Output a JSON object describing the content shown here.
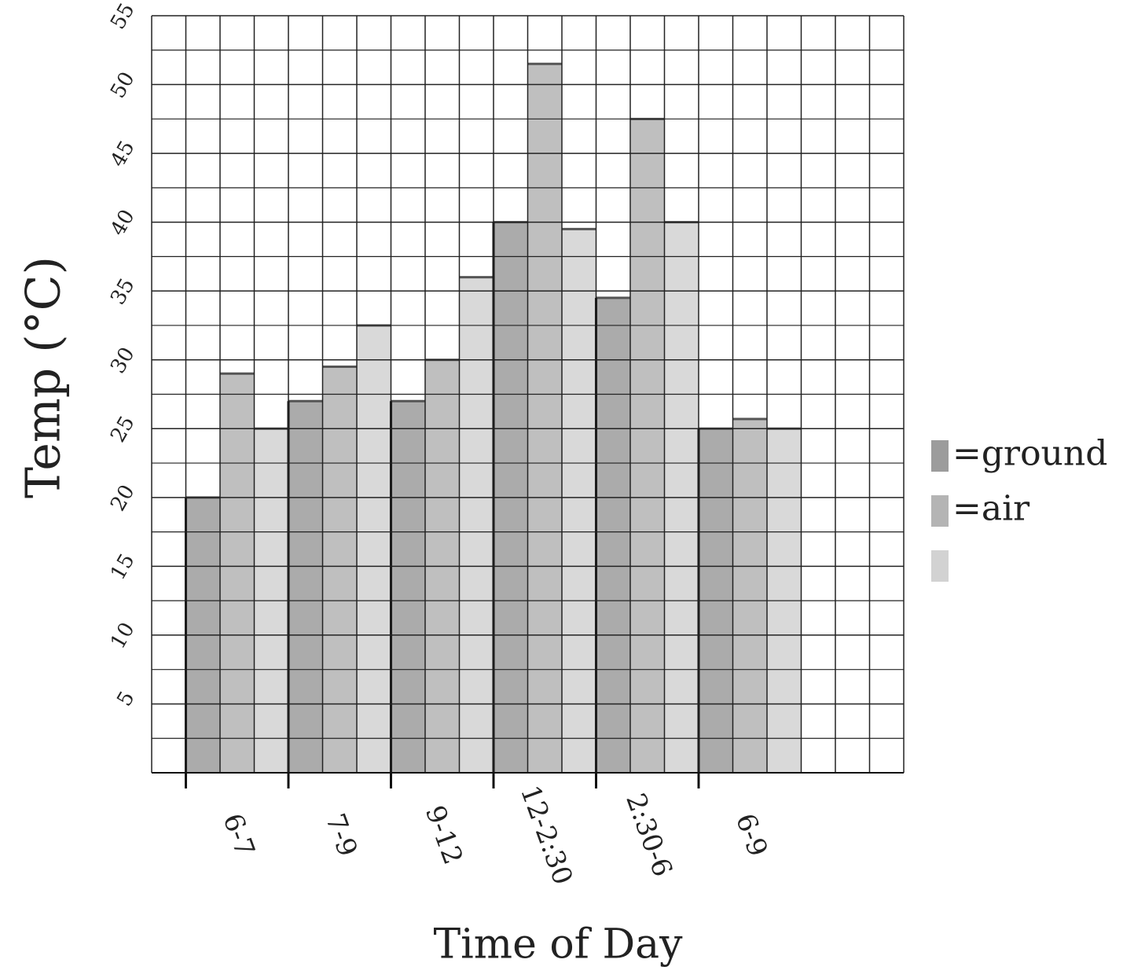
{
  "chart_data": {
    "type": "bar",
    "y_label": "Temp (°C)",
    "x_label": "Time of Day",
    "categories": [
      "6-7",
      "7-9",
      "9-12",
      "12-2:30",
      "2:30-6",
      "6-9"
    ],
    "series": [
      {
        "name": "=ground",
        "color": "#9c9c9c",
        "values": [
          20,
          27,
          27,
          40,
          34.5,
          25
        ]
      },
      {
        "name": "=air",
        "color": "#b4b4b4",
        "values": [
          29,
          29.5,
          30,
          51.5,
          47.5,
          25.7
        ]
      },
      {
        "name": null,
        "color": "#d2d2d2",
        "values": [
          25,
          32.5,
          36,
          39.5,
          40,
          25
        ]
      }
    ],
    "ylim": [
      0,
      55
    ],
    "yticks": [
      5,
      10,
      15,
      20,
      25,
      30,
      35,
      40,
      45,
      50,
      55
    ],
    "grid": true
  }
}
